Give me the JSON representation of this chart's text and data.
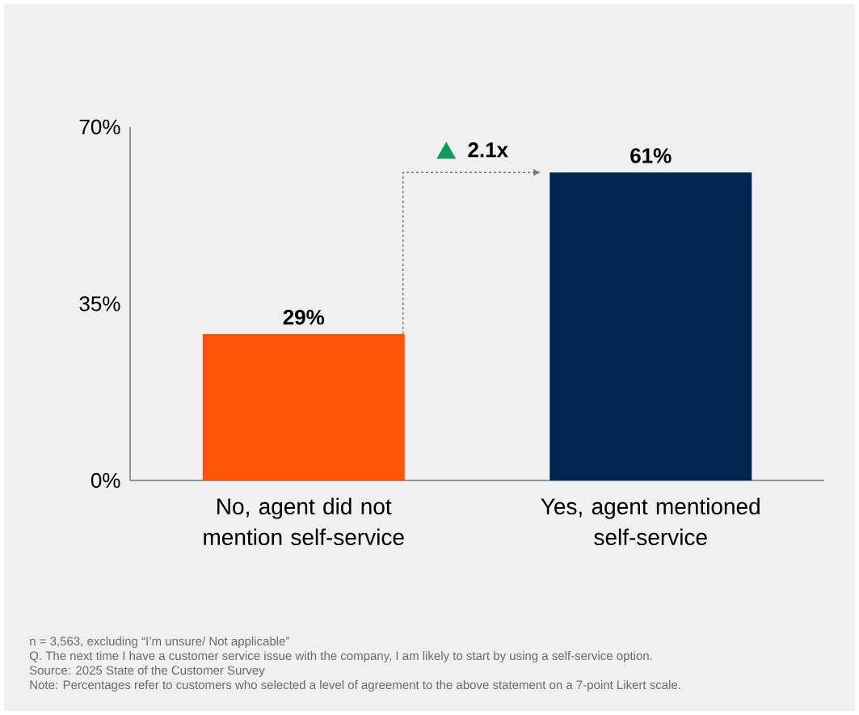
{
  "chart_data": {
    "type": "bar",
    "categories": [
      "No, agent did not mention self-service",
      "Yes, agent mentioned self-service"
    ],
    "values": [
      29,
      61
    ],
    "colors": [
      "#fe5409",
      "#00264f"
    ],
    "value_labels": [
      "29%",
      "61%"
    ],
    "ylim": [
      0,
      70
    ],
    "yticks": [
      {
        "value": 0,
        "label": "0%"
      },
      {
        "value": 35,
        "label": "35%"
      },
      {
        "value": 70,
        "label": "70%"
      }
    ],
    "grid": false,
    "annotations": [
      "2.1x",
      "n = 3,563, excluding “I’m unsure/ Not applicable”",
      "Q. The next time I have a customer service issue with the company, I am likely to start by using a self-service option.",
      "Source: 2025 State of the Customer Survey",
      "Note: Percentages refer to customers who selected a level of agreement to the above statement on a 7-point Likert scale."
    ]
  }
}
